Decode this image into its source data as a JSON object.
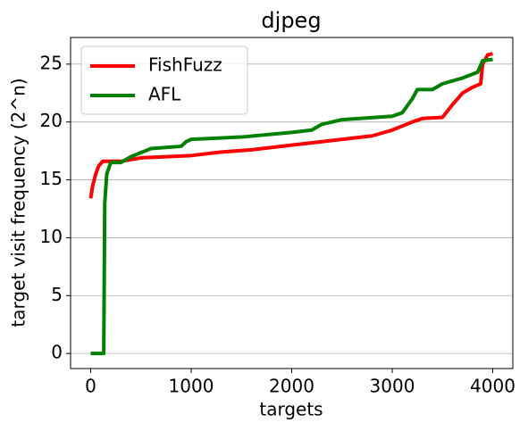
{
  "chart_data": {
    "type": "line",
    "title": "djpeg",
    "x_label": "targets",
    "y_label": "target visit frequency (2^n)",
    "xlim": [
      -200,
      4200
    ],
    "ylim": [
      -1.3,
      27.3
    ],
    "xticks": [
      0,
      1000,
      2000,
      3000,
      4000
    ],
    "yticks": [
      0,
      5,
      10,
      15,
      20,
      25
    ],
    "grid": "y",
    "legend": "upper left",
    "series": [
      {
        "name": "FishFuzz",
        "color": "#ff0000",
        "x": [
          0,
          20,
          50,
          80,
          120,
          300,
          500,
          1000,
          1300,
          1600,
          2000,
          2300,
          2600,
          2800,
          3000,
          3200,
          3300,
          3500,
          3600,
          3700,
          3800,
          3880,
          3900,
          3950,
          4000
        ],
        "values": [
          13.4,
          14.5,
          15.5,
          16.2,
          16.6,
          16.6,
          16.9,
          17.1,
          17.4,
          17.6,
          18,
          18.3,
          18.6,
          18.8,
          19.3,
          20,
          20.3,
          20.4,
          21.5,
          22.5,
          23,
          23.3,
          25,
          25.8,
          25.9
        ]
      },
      {
        "name": "AFL",
        "color": "#008000",
        "x": [
          0,
          130,
          140,
          160,
          200,
          300,
          400,
          600,
          900,
          950,
          1000,
          1500,
          2000,
          2200,
          2300,
          2500,
          3000,
          3100,
          3200,
          3250,
          3400,
          3500,
          3700,
          3850,
          3900,
          4000
        ],
        "values": [
          0,
          0,
          13,
          15.5,
          16.5,
          16.5,
          17,
          17.7,
          17.9,
          18.3,
          18.5,
          18.7,
          19.1,
          19.3,
          19.8,
          20.2,
          20.5,
          20.8,
          22,
          22.8,
          22.8,
          23.3,
          23.8,
          24.3,
          25.3,
          25.4
        ]
      }
    ]
  }
}
